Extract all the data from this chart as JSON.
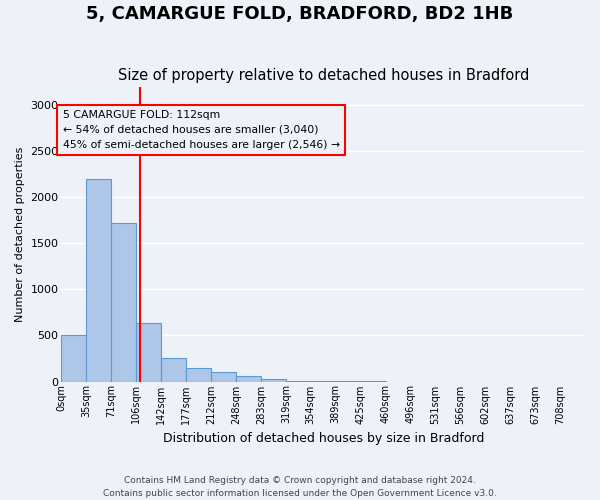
{
  "title1": "5, CAMARGUE FOLD, BRADFORD, BD2 1HB",
  "title2": "Size of property relative to detached houses in Bradford",
  "xlabel": "Distribution of detached houses by size in Bradford",
  "ylabel": "Number of detached properties",
  "bin_labels": [
    "0sqm",
    "35sqm",
    "71sqm",
    "106sqm",
    "142sqm",
    "177sqm",
    "212sqm",
    "248sqm",
    "283sqm",
    "319sqm",
    "354sqm",
    "389sqm",
    "425sqm",
    "460sqm",
    "496sqm",
    "531sqm",
    "566sqm",
    "602sqm",
    "637sqm",
    "673sqm",
    "708sqm"
  ],
  "bar_values": [
    510,
    2200,
    1720,
    640,
    260,
    150,
    100,
    60,
    30,
    10,
    5,
    2,
    1,
    0,
    0,
    0,
    0,
    0,
    0,
    0,
    0
  ],
  "bar_color": "#aec6e8",
  "bar_edge_color": "#5b9bd5",
  "red_line_x": 2.67,
  "annotation_text": "5 CAMARGUE FOLD: 112sqm\n← 54% of detached houses are smaller (3,040)\n45% of semi-detached houses are larger (2,546) →",
  "footer": "Contains HM Land Registry data © Crown copyright and database right 2024.\nContains public sector information licensed under the Open Government Licence v3.0.",
  "ylim": [
    0,
    3200
  ],
  "yticks": [
    0,
    500,
    1000,
    1500,
    2000,
    2500,
    3000
  ],
  "bg_color": "#eef2f8",
  "grid_color": "#ffffff",
  "title1_fontsize": 13,
  "title2_fontsize": 10.5
}
